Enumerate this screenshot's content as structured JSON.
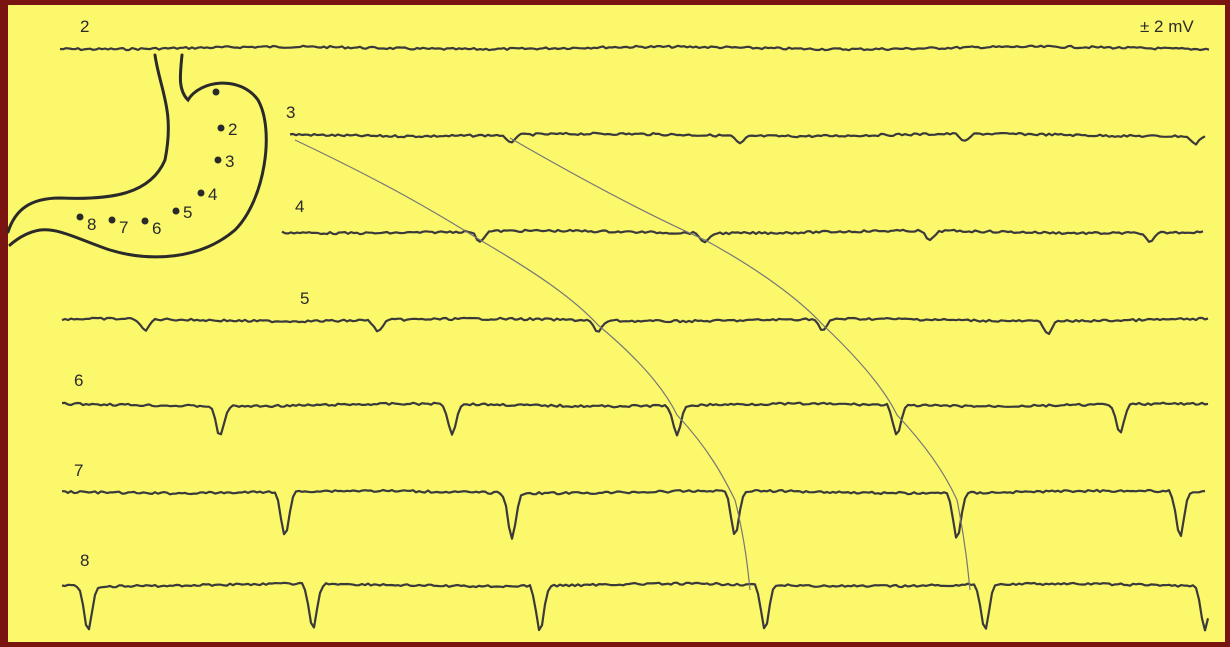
{
  "scale_label": "± 2 mV",
  "traces": [
    {
      "label": "2"
    },
    {
      "label": "3"
    },
    {
      "label": "4"
    },
    {
      "label": "5"
    },
    {
      "label": "6"
    },
    {
      "label": "7"
    },
    {
      "label": "8"
    }
  ],
  "electrodes": [
    {
      "label": "2"
    },
    {
      "label": "3"
    },
    {
      "label": "4"
    },
    {
      "label": "5"
    },
    {
      "label": "6"
    },
    {
      "label": "7"
    },
    {
      "label": "8"
    }
  ]
}
